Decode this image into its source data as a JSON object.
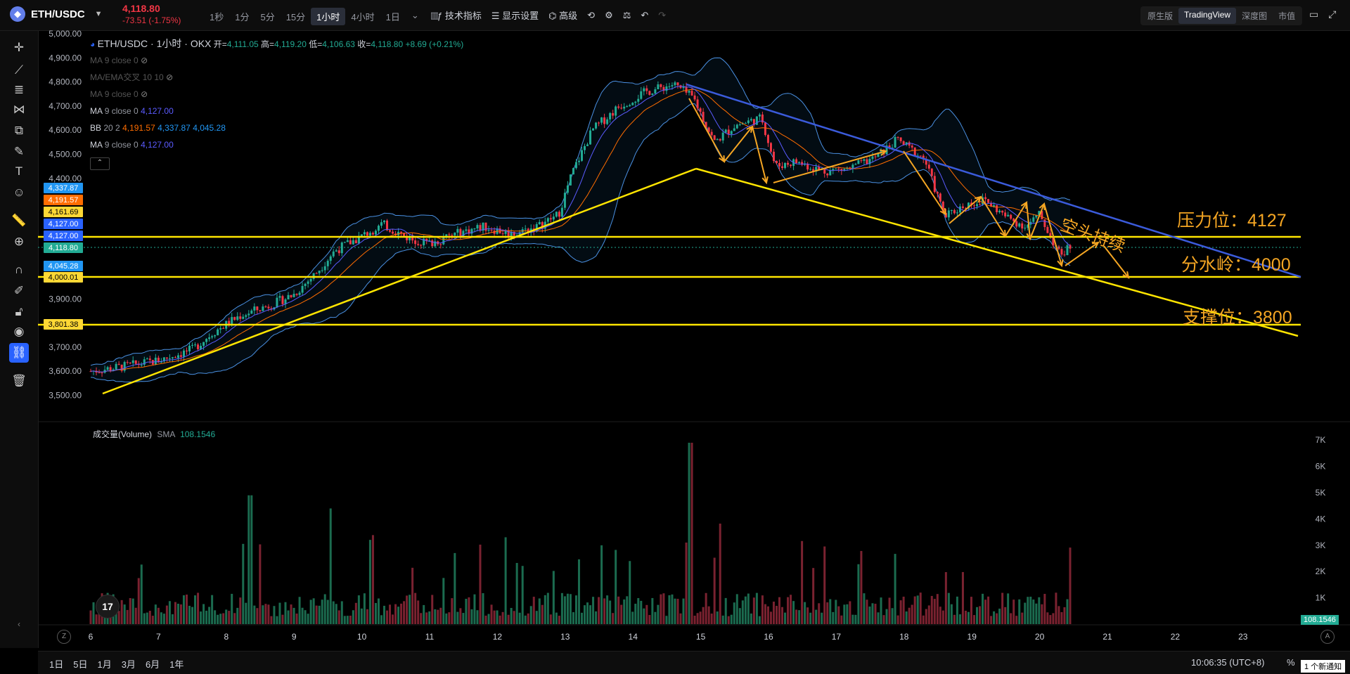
{
  "header": {
    "symbol": "ETH/USDC",
    "price": "4,118.80",
    "change": "-73.51 (-1.75%)",
    "timeframes": [
      "1秒",
      "1分",
      "5分",
      "15分",
      "1小时",
      "4小时",
      "1日"
    ],
    "active_timeframe": "1小时",
    "tools": {
      "indicators": "技术指标",
      "display": "显示设置",
      "advanced": "高级"
    },
    "views": [
      "原生版",
      "TradingView",
      "深度图",
      "市值"
    ],
    "active_view": "TradingView"
  },
  "legend": {
    "title": "ETH/USDC · 1小时 · OKX",
    "open_label": "开=",
    "open": "4,111.05",
    "high_label": "高=",
    "high": "4,119.20",
    "low_label": "低=",
    "low": "4,106.63",
    "close_label": "收=",
    "close": "4,118.80",
    "delta": "+8.69 (+0.21%)",
    "rows": [
      {
        "name": "MA",
        "params": "9 close 0",
        "values": [],
        "hidden": true
      },
      {
        "name": "MA/EMA交叉",
        "params": "10 10",
        "values": [],
        "hidden": true
      },
      {
        "name": "MA",
        "params": "9 close 0",
        "values": [],
        "hidden": true
      },
      {
        "name": "MA",
        "params": "9 close 0",
        "values": [
          "4,127.00"
        ],
        "hidden": false
      },
      {
        "name": "BB",
        "params": "20 2",
        "values": [
          "4,191.57",
          "4,337.87",
          "4,045.28"
        ],
        "hidden": false
      },
      {
        "name": "MA",
        "params": "9 close 0",
        "values": [
          "4,127.00"
        ],
        "hidden": false
      }
    ]
  },
  "price_axis": [
    "5,000.00",
    "4,900.00",
    "4,800.00",
    "4,700.00",
    "4,600.00",
    "4,500.00",
    "4,400.00",
    "3,900.00",
    "3,700.00",
    "3,600.00",
    "3,500.00"
  ],
  "price_tags": [
    {
      "value": "4,337.87",
      "color": "#2196f3"
    },
    {
      "value": "4,191.57",
      "color": "#ff6d00"
    },
    {
      "value": "4,161.69",
      "color": "#fdd835"
    },
    {
      "value": "4,127.00",
      "color": "#2962ff"
    },
    {
      "value": "4,127.00",
      "color": "#2962ff"
    },
    {
      "value": "4,118.80",
      "color": "#22ab94"
    },
    {
      "value": "4,045.28",
      "color": "#2196f3"
    },
    {
      "value": "4,000.01",
      "color": "#fdd835"
    },
    {
      "value": "3,801.38",
      "color": "#fdd835"
    }
  ],
  "annotations": {
    "resistance": "压力位：4127",
    "pivot": "分水岭：4000",
    "support": "支撑位：3800",
    "bearish": "空头持续"
  },
  "volume": {
    "label": "成交量(Volume)",
    "sma_label": "SMA",
    "sma_value": "108.1546",
    "axis": [
      "7K",
      "6K",
      "5K",
      "4K",
      "3K",
      "2K",
      "1K"
    ],
    "current_tag": "108.1546"
  },
  "time_axis": [
    "6",
    "7",
    "8",
    "9",
    "10",
    "11",
    "12",
    "13",
    "14",
    "15",
    "16",
    "17",
    "18",
    "19",
    "20",
    "21",
    "22",
    "23"
  ],
  "bottom": {
    "ranges": [
      "1日",
      "5日",
      "1月",
      "3月",
      "6月",
      "1年"
    ],
    "clock": "10:06:35 (UTC+8)",
    "percent": "%",
    "notify": "1 个新通知",
    "z_button": "Z",
    "a_button": "A"
  },
  "colors": {
    "up": "#22ab94",
    "down": "#f23645",
    "yellow": "#ffe500",
    "blue_line": "#3b5bdb",
    "bb": "#4a90e2",
    "arrows": "#f5a623"
  }
}
